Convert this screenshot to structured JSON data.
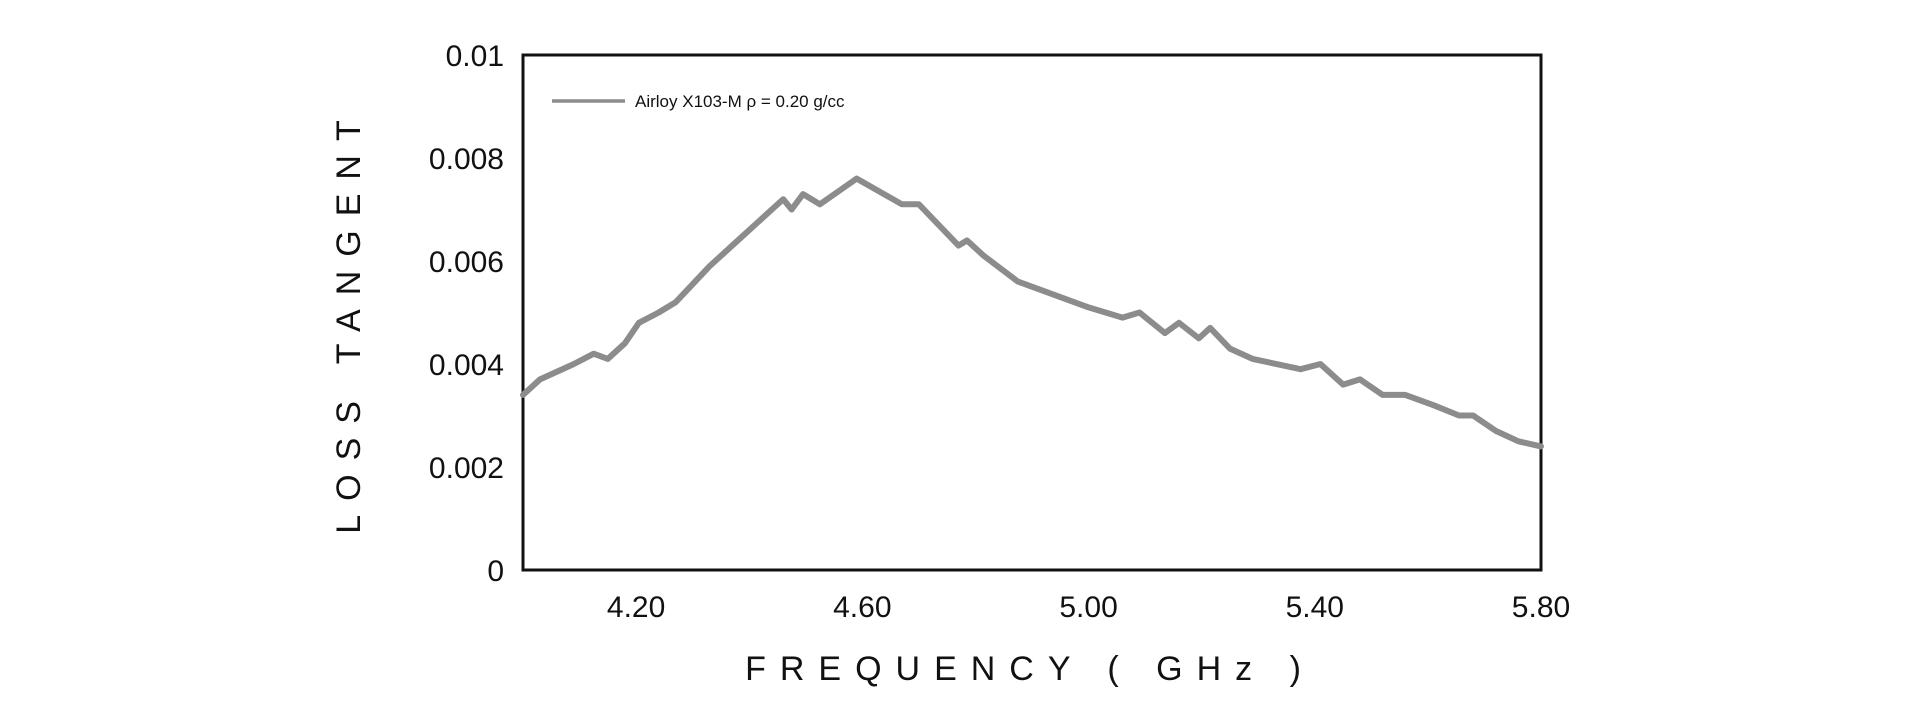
{
  "chart_data": {
    "type": "line",
    "xlabel": "FREQUENCY ( GHz )",
    "ylabel": "LOSS TANGENT",
    "xlim": [
      4.0,
      5.8
    ],
    "ylim": [
      0,
      0.01
    ],
    "x_ticks": [
      {
        "value": 4.2,
        "label": "4.20"
      },
      {
        "value": 4.6,
        "label": "4.60"
      },
      {
        "value": 5.0,
        "label": "5.00"
      },
      {
        "value": 5.4,
        "label": "5.40"
      },
      {
        "value": 5.8,
        "label": "5.80"
      }
    ],
    "y_ticks": [
      {
        "value": 0,
        "label": "0"
      },
      {
        "value": 0.002,
        "label": "0.002"
      },
      {
        "value": 0.004,
        "label": "0.004"
      },
      {
        "value": 0.006,
        "label": "0.006"
      },
      {
        "value": 0.008,
        "label": "0.008"
      },
      {
        "value": 0.01,
        "label": "0.01"
      }
    ],
    "grid": false,
    "legend_position": "top-left",
    "series": [
      {
        "name": "Airloy X103-M  ρ = 0.20 g/cc",
        "color": "#8c8c8c",
        "x": [
          4.0,
          4.03,
          4.09,
          4.125,
          4.15,
          4.18,
          4.205,
          4.24,
          4.27,
          4.33,
          4.38,
          4.42,
          4.46,
          4.475,
          4.495,
          4.525,
          4.59,
          4.67,
          4.7,
          4.77,
          4.785,
          4.815,
          4.875,
          4.95,
          5.0,
          5.06,
          5.09,
          5.135,
          5.16,
          5.195,
          5.215,
          5.25,
          5.29,
          5.375,
          5.41,
          5.45,
          5.48,
          5.52,
          5.56,
          5.61,
          5.655,
          5.68,
          5.72,
          5.76,
          5.8
        ],
        "y": [
          0.0034,
          0.0037,
          0.004,
          0.0042,
          0.0041,
          0.0044,
          0.0048,
          0.005,
          0.0052,
          0.0059,
          0.0064,
          0.0068,
          0.0072,
          0.007,
          0.0073,
          0.0071,
          0.0076,
          0.0071,
          0.0071,
          0.0063,
          0.0064,
          0.0061,
          0.0056,
          0.0053,
          0.0051,
          0.0049,
          0.005,
          0.0046,
          0.0048,
          0.0045,
          0.0047,
          0.0043,
          0.0041,
          0.0039,
          0.004,
          0.0036,
          0.0037,
          0.0034,
          0.0034,
          0.0032,
          0.003,
          0.003,
          0.0027,
          0.0025,
          0.0024
        ]
      }
    ]
  }
}
